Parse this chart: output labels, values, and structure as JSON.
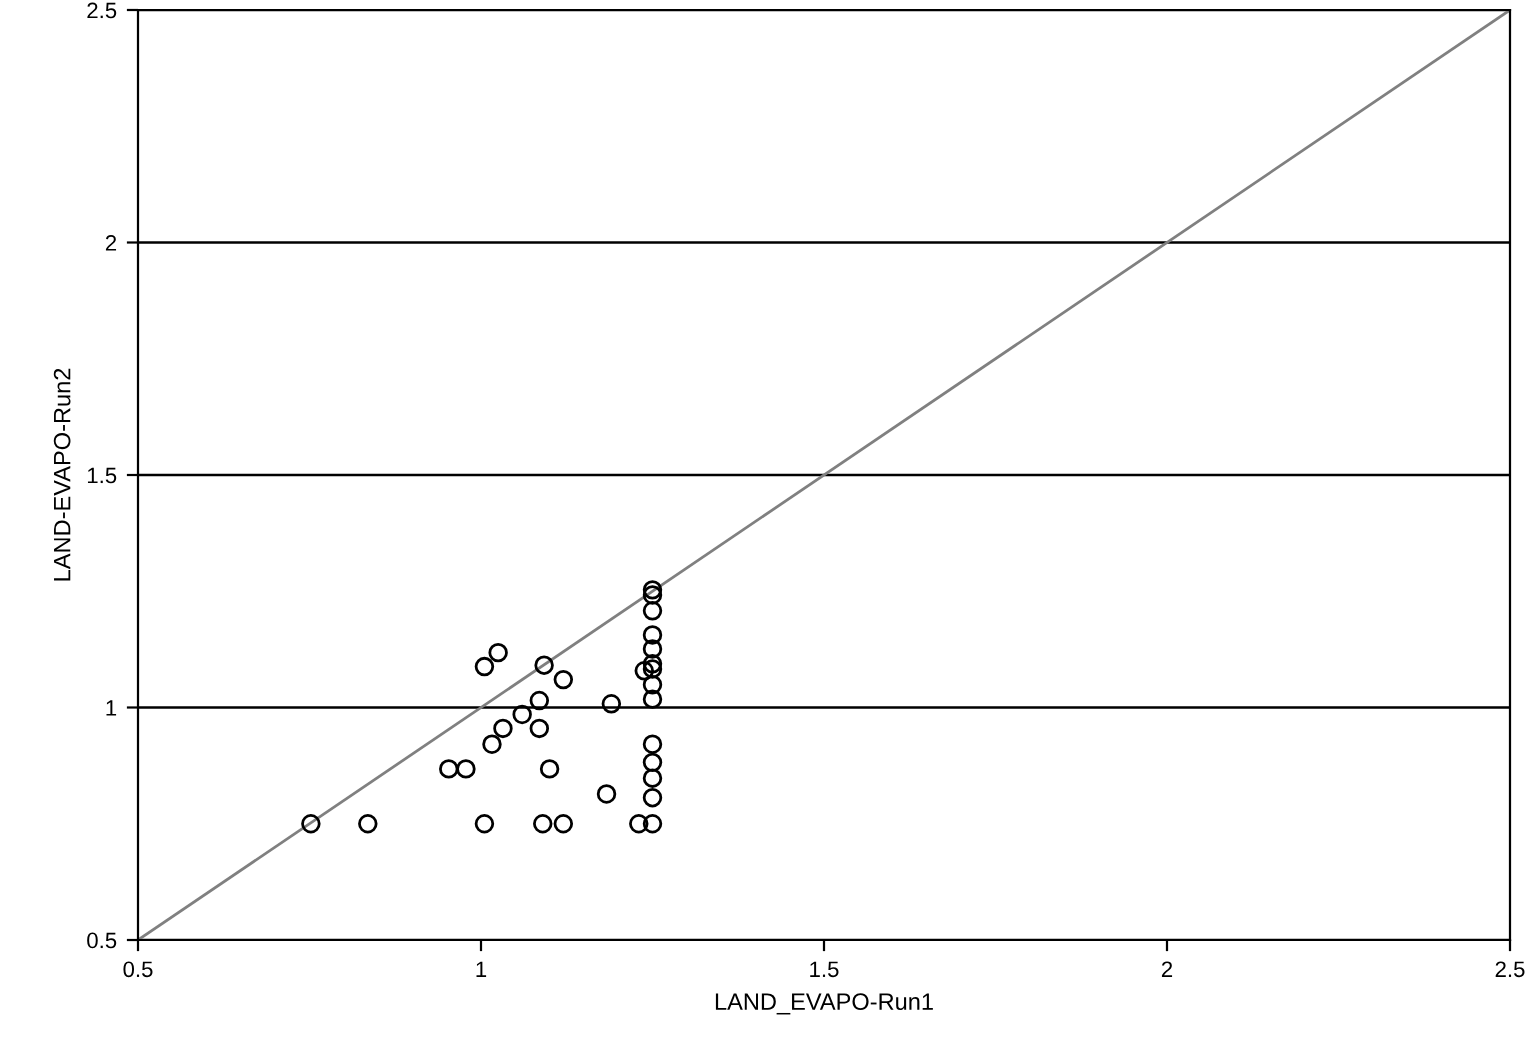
{
  "chart_data": {
    "type": "scatter",
    "xlabel": "LAND_EVAPO-Run1",
    "ylabel": "LAND-EVAPO-Run2",
    "xlim": [
      0.5,
      2.5
    ],
    "ylim": [
      0.5,
      2.5
    ],
    "xticks": [
      0.5,
      1,
      1.5,
      2,
      2.5
    ],
    "yticks": [
      0.5,
      1,
      1.5,
      2,
      2.5
    ],
    "grid": "y",
    "marker": "circle",
    "legend": false,
    "series": [
      {
        "color": "#000000",
        "x": [
          0.752,
          0.835,
          1.005,
          1.09,
          1.12,
          1.23,
          1.25,
          0.953,
          0.978,
          1.1,
          1.183,
          1.016,
          1.032,
          1.06,
          1.085,
          1.085,
          1.005,
          1.025,
          1.092,
          1.12,
          1.19,
          1.238,
          1.25,
          1.25,
          1.25,
          1.25,
          1.25,
          1.25,
          1.25,
          1.25,
          1.25,
          1.25,
          1.25,
          1.25,
          1.25
        ],
        "values": [
          0.75,
          0.75,
          0.75,
          0.75,
          0.75,
          0.75,
          0.75,
          0.868,
          0.868,
          0.868,
          0.814,
          0.921,
          0.955,
          0.985,
          0.955,
          1.015,
          1.088,
          1.118,
          1.091,
          1.06,
          1.008,
          1.079,
          1.253,
          1.242,
          1.208,
          1.156,
          1.126,
          1.094,
          1.083,
          1.049,
          1.018,
          0.921,
          0.882,
          0.848,
          0.806
        ]
      },
      {
        "type": "line",
        "color": "#808080",
        "marker": "none",
        "x": [
          0.5,
          2.5
        ],
        "values": [
          0.5,
          2.5
        ]
      }
    ]
  }
}
